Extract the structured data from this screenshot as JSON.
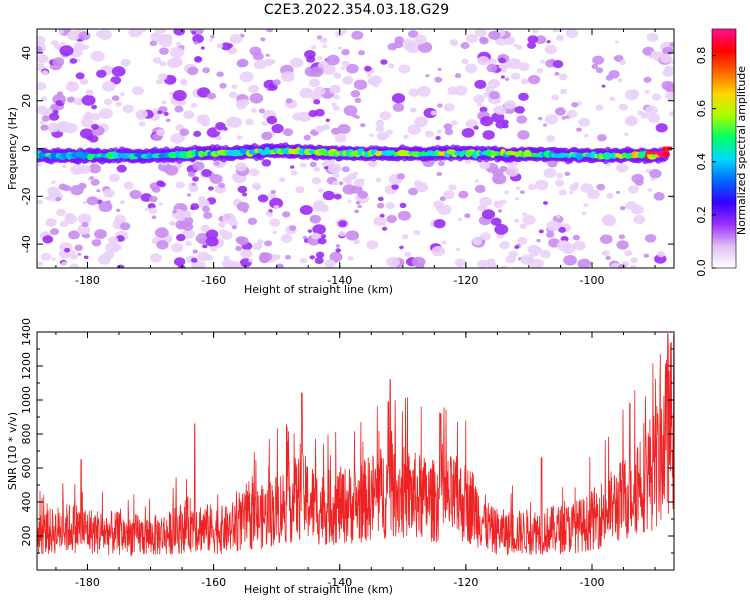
{
  "title": "C2E3.2022.354.03.18.G29",
  "chart_data": [
    {
      "type": "heatmap",
      "xlabel": "Height of straight line (km)",
      "ylabel": "Frequency (Hz)",
      "xlim": [
        -188,
        -87
      ],
      "ylim": [
        -50,
        50
      ],
      "xticks": [
        -180,
        -160,
        -140,
        -120,
        -100
      ],
      "yticks": [
        -40,
        -20,
        0,
        20,
        40
      ],
      "colorbar": {
        "label": "Normalized spectral amplitude",
        "range": [
          0,
          0.9
        ],
        "ticks": [
          0.0,
          0.2,
          0.4,
          0.6,
          0.8
        ],
        "colors": [
          "#ffffff",
          "#e2bff5",
          "#9b30ff",
          "#3500ff",
          "#0066ff",
          "#00d9ff",
          "#00ff66",
          "#a6ff00",
          "#ffd700",
          "#ff6600",
          "#ff0000",
          "#ff1090"
        ]
      },
      "signal_line": {
        "description_values": "central frequency band near 0 Hz",
        "x": [
          -188,
          -170,
          -150,
          -140,
          -120,
          -100,
          -90,
          -87
        ],
        "frequency": [
          -3,
          -3,
          -1,
          -2,
          -2,
          -3,
          -3,
          -2
        ],
        "amplitude": [
          0.35,
          0.3,
          0.45,
          0.45,
          0.5,
          0.4,
          0.8,
          0.85
        ]
      }
    },
    {
      "type": "line",
      "xlabel": "Height of straight line (km)",
      "ylabel": "SNR (10 * v/v)",
      "xlim": [
        -188,
        -87
      ],
      "ylim": [
        0,
        1400
      ],
      "xticks": [
        -180,
        -160,
        -140,
        -120,
        -100
      ],
      "yticks": [
        200,
        400,
        600,
        800,
        1000,
        1200,
        1400
      ],
      "color": "#ee2222",
      "series": [
        {
          "x": [
            -188,
            -185,
            -182,
            -179,
            -176,
            -173,
            -170,
            -167,
            -164,
            -161,
            -158,
            -155,
            -152,
            -149,
            -146,
            -143,
            -140,
            -137,
            -134,
            -131,
            -128,
            -125,
            -122,
            -119,
            -116,
            -113,
            -110,
            -107,
            -104,
            -101,
            -98,
            -95,
            -92,
            -90,
            -88,
            -87
          ],
          "values": [
            230,
            260,
            280,
            250,
            240,
            230,
            220,
            240,
            300,
            270,
            260,
            320,
            350,
            420,
            480,
            400,
            420,
            430,
            500,
            520,
            480,
            450,
            470,
            420,
            260,
            240,
            250,
            260,
            270,
            300,
            380,
            460,
            620,
            650,
            900,
            1000
          ],
          "peaks": [
            {
              "x": -181,
              "value": 650
            },
            {
              "x": -163,
              "value": 860
            },
            {
              "x": -146,
              "value": 1040
            },
            {
              "x": -132,
              "value": 1120
            },
            {
              "x": -124,
              "value": 920
            },
            {
              "x": -108,
              "value": 660
            },
            {
              "x": -94,
              "value": 980
            },
            {
              "x": -88,
              "value": 1390
            }
          ]
        }
      ]
    }
  ]
}
